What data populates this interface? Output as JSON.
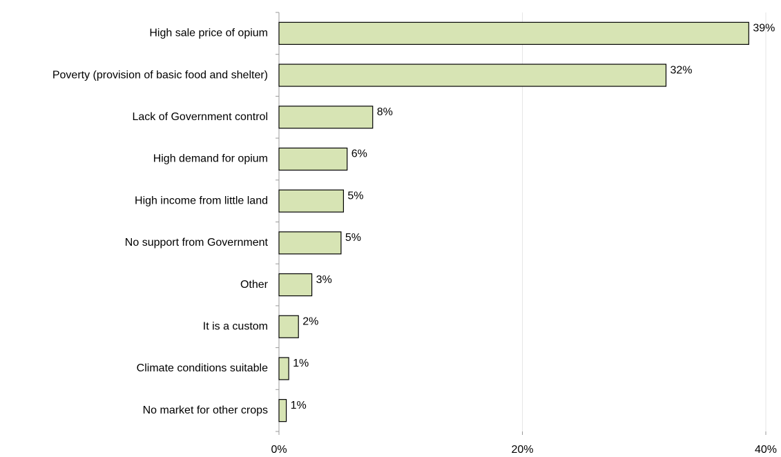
{
  "chart_data": {
    "type": "bar",
    "orientation": "horizontal",
    "categories": [
      "High sale price of opium",
      "Poverty (provision of basic food and shelter)",
      "Lack of Government control",
      "High demand for opium",
      "High income from little land",
      "No support from Government",
      "Other",
      "It is a custom",
      "Climate conditions suitable",
      "No market for other crops"
    ],
    "values": [
      38.6,
      31.8,
      7.7,
      5.6,
      5.3,
      5.1,
      2.7,
      1.6,
      0.8,
      0.6
    ],
    "value_labels": [
      "39%",
      "32%",
      "8%",
      "6%",
      "5%",
      "5%",
      "3%",
      "2%",
      "1%",
      "1%"
    ],
    "color": "#d7e4b4",
    "xlim": [
      0,
      40
    ],
    "xticks": [
      {
        "value": 0,
        "label": "0%"
      },
      {
        "value": 20,
        "label": "20%"
      },
      {
        "value": 40,
        "label": "40%"
      }
    ],
    "grid": true
  }
}
